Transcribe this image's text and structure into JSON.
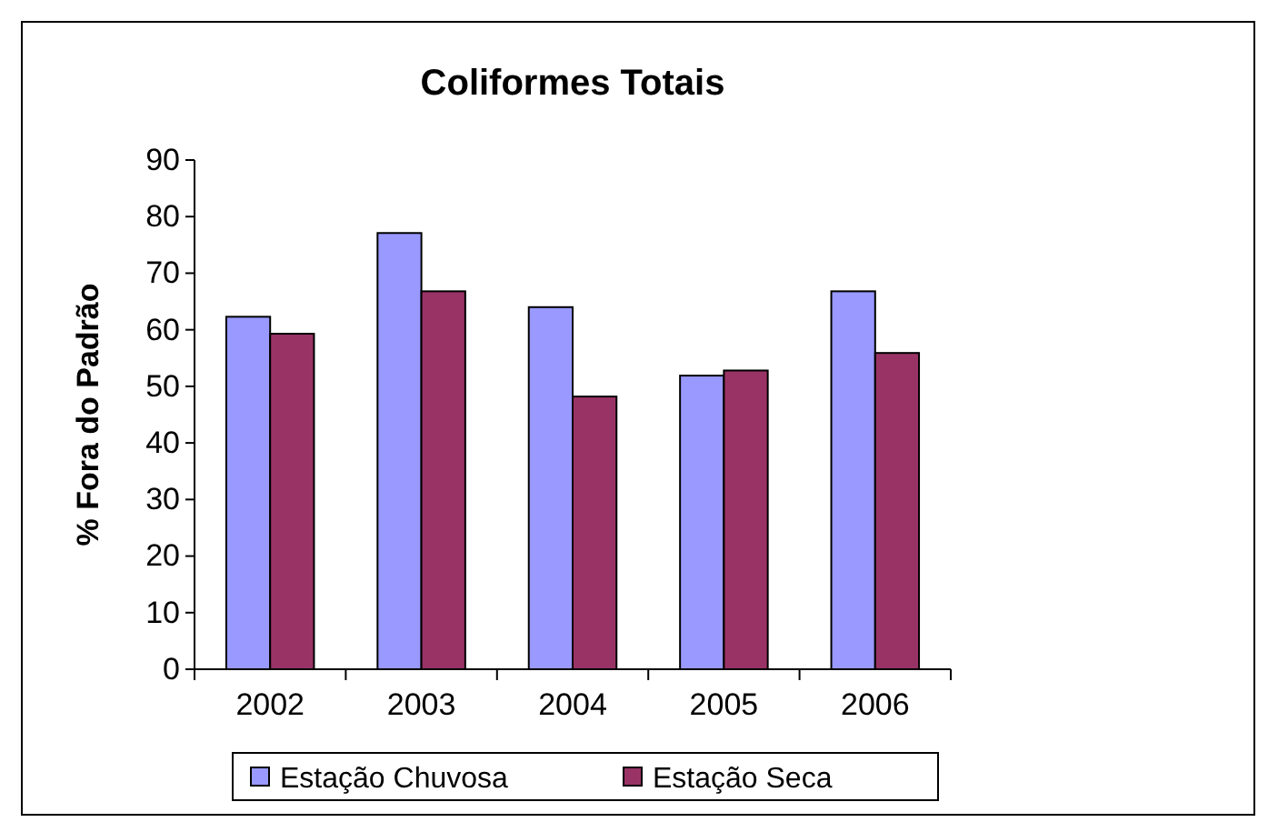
{
  "chart_data": {
    "type": "bar",
    "title": "Coliformes Totais",
    "ylabel": "% Fora do Padrão",
    "categories": [
      "2002",
      "2003",
      "2004",
      "2005",
      "2006"
    ],
    "series": [
      {
        "name": "Estação Chuvosa",
        "color": "#9999ff",
        "values": [
          62.3,
          77.1,
          64.0,
          51.9,
          66.8
        ]
      },
      {
        "name": "Estação Seca",
        "color": "#993366",
        "values": [
          59.3,
          66.8,
          48.2,
          52.8,
          55.9
        ]
      }
    ],
    "ylim": [
      0,
      90
    ],
    "yticks": [
      0,
      10,
      20,
      30,
      40,
      50,
      60,
      70,
      80,
      90
    ],
    "grid": false,
    "legend": "bottom"
  }
}
